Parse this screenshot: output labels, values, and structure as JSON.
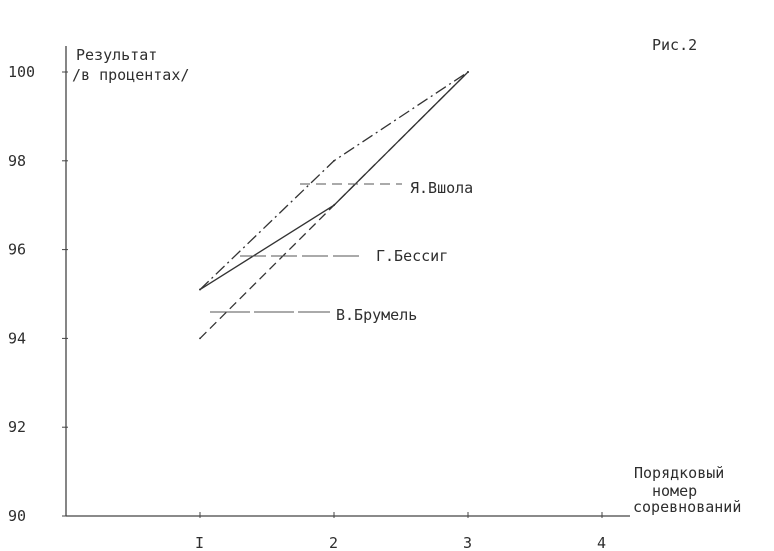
{
  "figure_label": "Рис.2",
  "chart_data": {
    "type": "line",
    "title": "",
    "ylabel_lines": [
      "Результат",
      "/в процентах/"
    ],
    "xlabel_lines": [
      "Порядковый",
      "номер",
      "соревнований"
    ],
    "x_tick_labels": [
      "I",
      "2",
      "3",
      "4"
    ],
    "x_ticks": [
      1,
      2,
      3,
      4
    ],
    "y_ticks": [
      90,
      92,
      94,
      96,
      98,
      100
    ],
    "xlim": [
      0,
      4.2
    ],
    "ylim": [
      90,
      100
    ],
    "grid": false,
    "legend": "inline-labels",
    "series": [
      {
        "name": "Я.Вшола",
        "style": "dashdot",
        "x": [
          1,
          2,
          3
        ],
        "y": [
          95.1,
          98.0,
          100.0
        ]
      },
      {
        "name": "Г.Бессиг",
        "style": "solid",
        "x": [
          1,
          2,
          3
        ],
        "y": [
          95.1,
          97.0,
          100.0
        ]
      },
      {
        "name": "В.Брумель",
        "style": "dashed",
        "x": [
          1,
          2,
          3
        ],
        "y": [
          94.0,
          97.0,
          100.0
        ]
      }
    ]
  }
}
